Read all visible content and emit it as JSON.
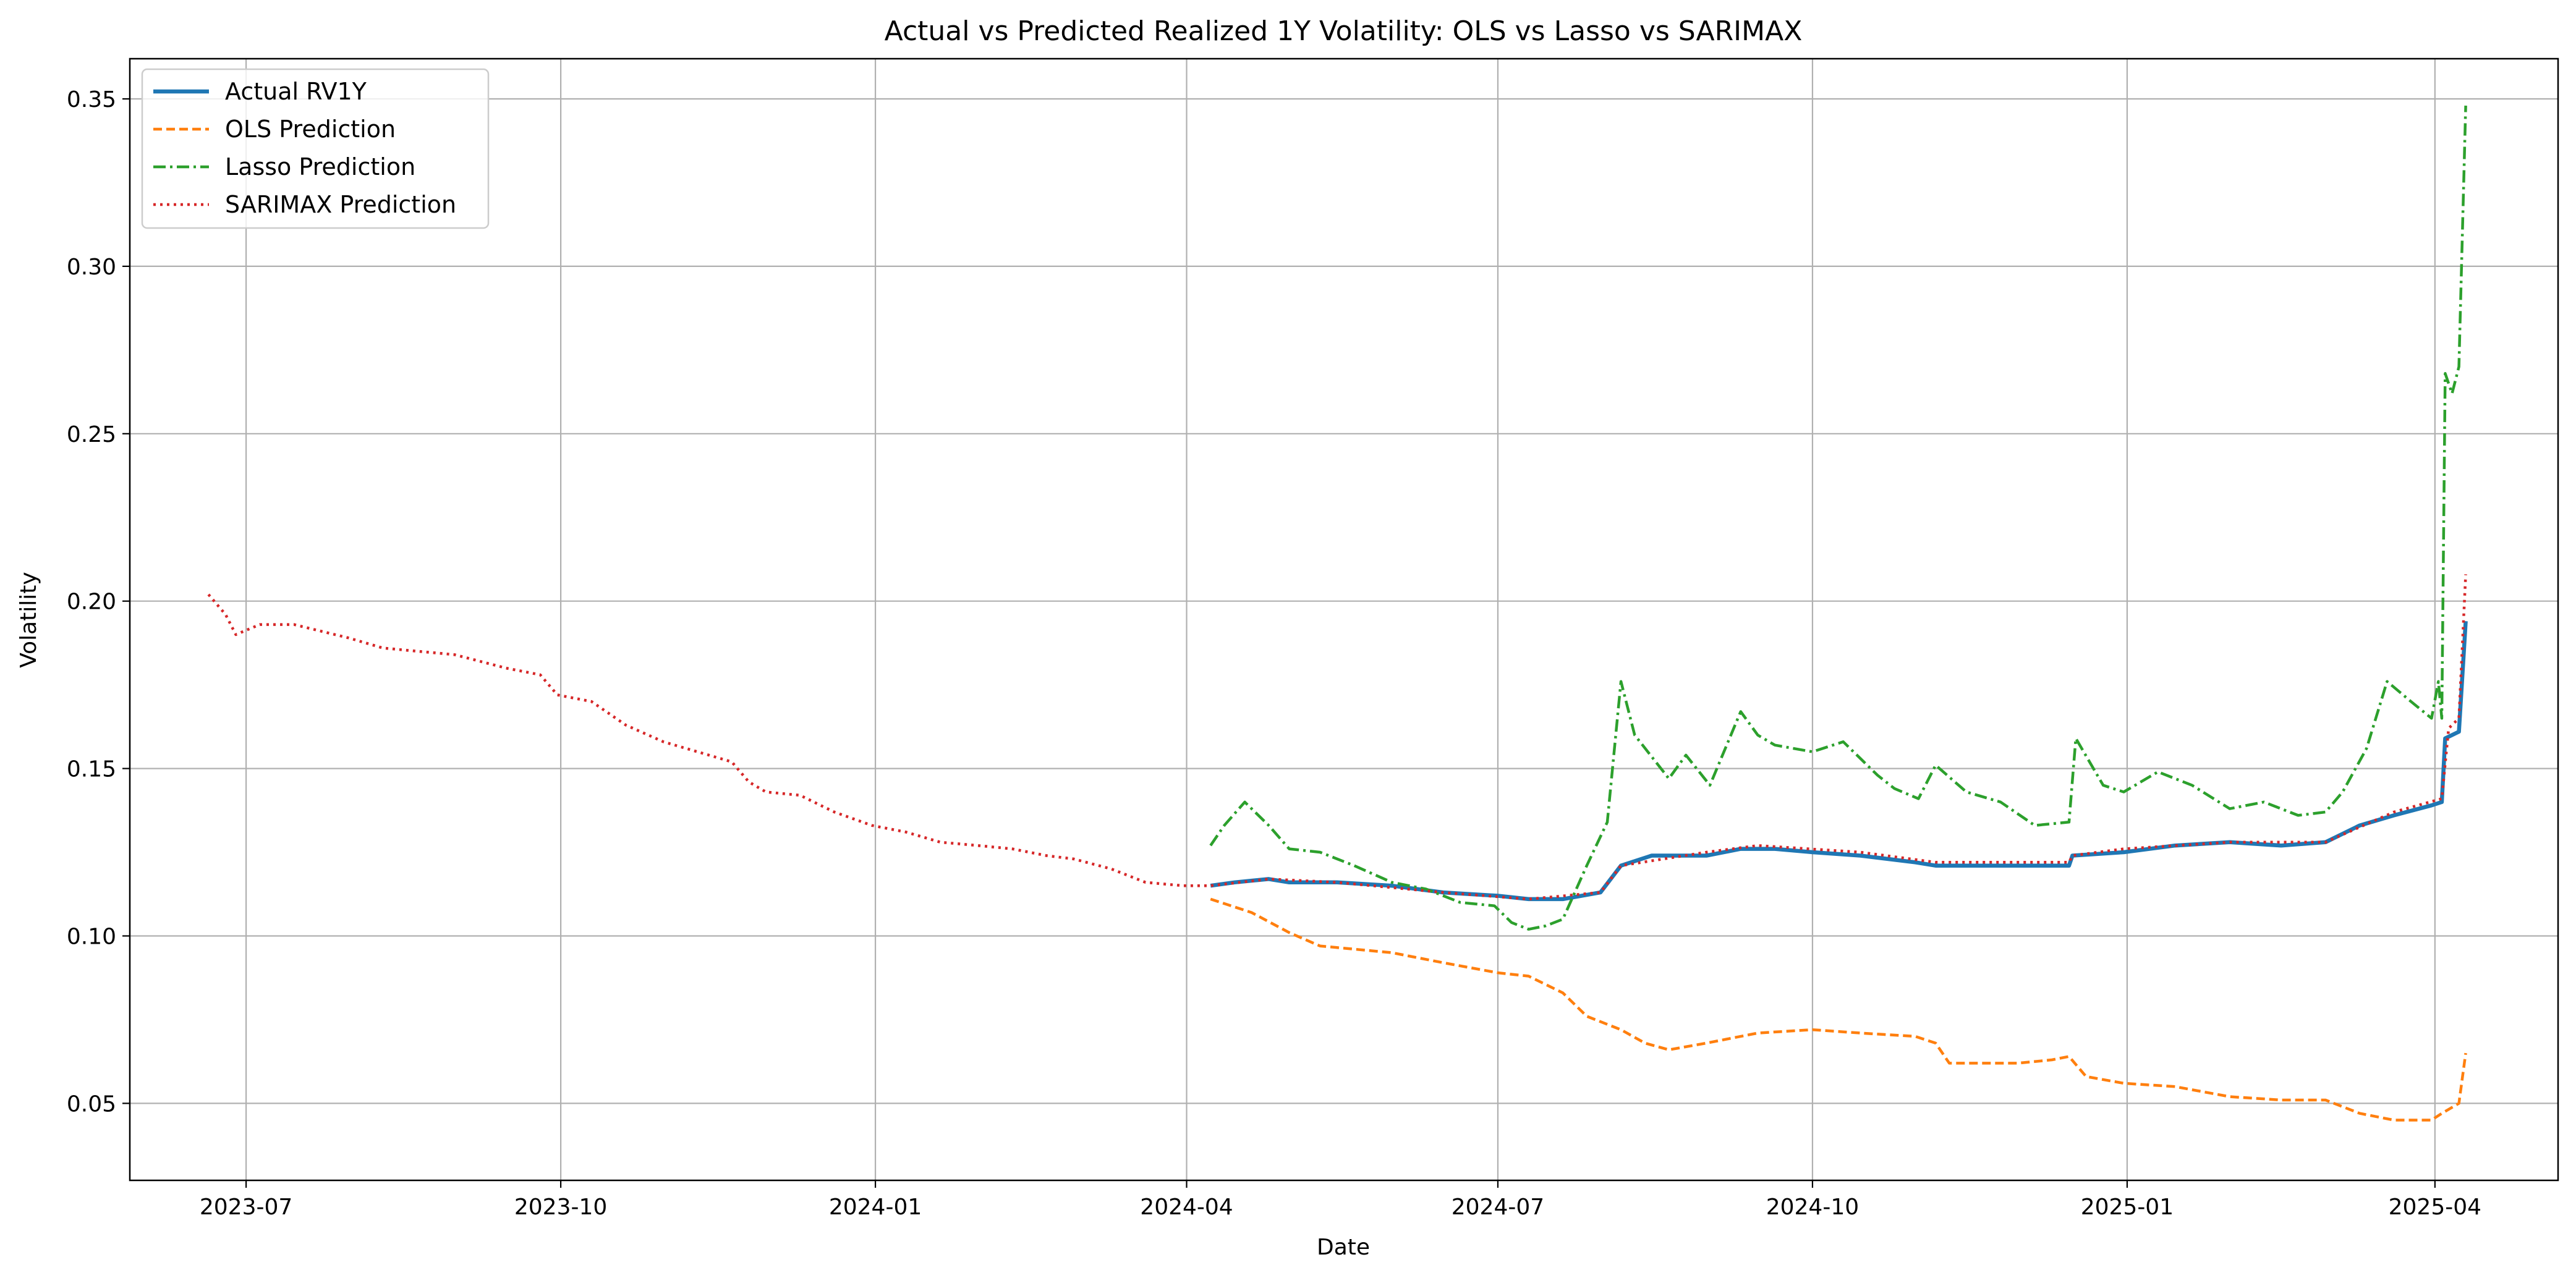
{
  "chart_data": {
    "type": "line",
    "title": "Actual vs Predicted Realized 1Y Volatility: OLS vs Lasso vs SARIMAX",
    "xlabel": "Date",
    "ylabel": "Volatility",
    "xlim": [
      "2023-05-28",
      "2025-05-07"
    ],
    "ylim": [
      0.027,
      0.362
    ],
    "grid": true,
    "legend_position": "upper-left",
    "x_ticks": [
      "2023-07-01",
      "2023-10-01",
      "2024-01-01",
      "2024-04-01",
      "2024-07-01",
      "2024-10-01",
      "2025-01-01",
      "2025-04-01"
    ],
    "x_tick_labels": [
      "2023-07",
      "2023-10",
      "2024-01",
      "2024-04",
      "2024-07",
      "2024-10",
      "2025-01",
      "2025-04"
    ],
    "y_ticks": [
      0.05,
      0.1,
      0.15,
      0.2,
      0.25,
      0.3,
      0.35
    ],
    "y_tick_labels": [
      "0.05",
      "0.10",
      "0.15",
      "0.20",
      "0.25",
      "0.30",
      "0.35"
    ],
    "series": [
      {
        "name": "Actual RV1Y",
        "color": "#1f77b4",
        "style": "solid",
        "points": [
          [
            "2024-04-08",
            0.115
          ],
          [
            "2024-04-15",
            0.116
          ],
          [
            "2024-04-25",
            0.117
          ],
          [
            "2024-05-01",
            0.116
          ],
          [
            "2024-05-15",
            0.116
          ],
          [
            "2024-05-31",
            0.115
          ],
          [
            "2024-06-15",
            0.113
          ],
          [
            "2024-07-01",
            0.112
          ],
          [
            "2024-07-10",
            0.111
          ],
          [
            "2024-07-20",
            0.111
          ],
          [
            "2024-07-31",
            0.113
          ],
          [
            "2024-08-06",
            0.121
          ],
          [
            "2024-08-15",
            0.124
          ],
          [
            "2024-08-31",
            0.124
          ],
          [
            "2024-09-10",
            0.126
          ],
          [
            "2024-09-20",
            0.126
          ],
          [
            "2024-10-01",
            0.125
          ],
          [
            "2024-10-15",
            0.124
          ],
          [
            "2024-10-31",
            0.122
          ],
          [
            "2024-11-06",
            0.121
          ],
          [
            "2024-11-15",
            0.121
          ],
          [
            "2024-11-30",
            0.121
          ],
          [
            "2024-12-15",
            0.121
          ],
          [
            "2024-12-16",
            0.124
          ],
          [
            "2024-12-31",
            0.125
          ],
          [
            "2025-01-15",
            0.127
          ],
          [
            "2025-01-31",
            0.128
          ],
          [
            "2025-02-15",
            0.127
          ],
          [
            "2025-02-28",
            0.128
          ],
          [
            "2025-03-10",
            0.133
          ],
          [
            "2025-03-20",
            0.136
          ],
          [
            "2025-03-31",
            0.139
          ],
          [
            "2025-04-03",
            0.14
          ],
          [
            "2025-04-04",
            0.159
          ],
          [
            "2025-04-08",
            0.161
          ],
          [
            "2025-04-10",
            0.194
          ]
        ]
      },
      {
        "name": "OLS Prediction",
        "color": "#ff7f0e",
        "style": "dashed",
        "points": [
          [
            "2024-04-08",
            0.111
          ],
          [
            "2024-04-20",
            0.107
          ],
          [
            "2024-05-01",
            0.101
          ],
          [
            "2024-05-10",
            0.097
          ],
          [
            "2024-05-31",
            0.095
          ],
          [
            "2024-06-15",
            0.092
          ],
          [
            "2024-07-01",
            0.089
          ],
          [
            "2024-07-10",
            0.088
          ],
          [
            "2024-07-20",
            0.083
          ],
          [
            "2024-07-27",
            0.076
          ],
          [
            "2024-08-06",
            0.072
          ],
          [
            "2024-08-13",
            0.068
          ],
          [
            "2024-08-20",
            0.066
          ],
          [
            "2024-08-31",
            0.068
          ],
          [
            "2024-09-15",
            0.071
          ],
          [
            "2024-10-01",
            0.072
          ],
          [
            "2024-10-15",
            0.071
          ],
          [
            "2024-10-31",
            0.07
          ],
          [
            "2024-11-06",
            0.068
          ],
          [
            "2024-11-10",
            0.062
          ],
          [
            "2024-11-30",
            0.062
          ],
          [
            "2024-12-10",
            0.063
          ],
          [
            "2024-12-15",
            0.064
          ],
          [
            "2024-12-20",
            0.058
          ],
          [
            "2024-12-31",
            0.056
          ],
          [
            "2025-01-15",
            0.055
          ],
          [
            "2025-01-31",
            0.052
          ],
          [
            "2025-02-15",
            0.051
          ],
          [
            "2025-02-28",
            0.051
          ],
          [
            "2025-03-10",
            0.047
          ],
          [
            "2025-03-20",
            0.045
          ],
          [
            "2025-03-31",
            0.045
          ],
          [
            "2025-04-03",
            0.047
          ],
          [
            "2025-04-08",
            0.05
          ],
          [
            "2025-04-10",
            0.065
          ]
        ]
      },
      {
        "name": "Lasso Prediction",
        "color": "#2ca02c",
        "style": "dashdot",
        "points": [
          [
            "2024-04-08",
            0.127
          ],
          [
            "2024-04-12",
            0.133
          ],
          [
            "2024-04-18",
            0.14
          ],
          [
            "2024-04-25",
            0.133
          ],
          [
            "2024-05-01",
            0.126
          ],
          [
            "2024-05-10",
            0.125
          ],
          [
            "2024-05-20",
            0.121
          ],
          [
            "2024-05-31",
            0.116
          ],
          [
            "2024-06-10",
            0.114
          ],
          [
            "2024-06-20",
            0.11
          ],
          [
            "2024-06-30",
            0.109
          ],
          [
            "2024-07-05",
            0.104
          ],
          [
            "2024-07-10",
            0.102
          ],
          [
            "2024-07-15",
            0.103
          ],
          [
            "2024-07-20",
            0.105
          ],
          [
            "2024-07-27",
            0.121
          ],
          [
            "2024-08-02",
            0.134
          ],
          [
            "2024-08-06",
            0.176
          ],
          [
            "2024-08-10",
            0.16
          ],
          [
            "2024-08-20",
            0.147
          ],
          [
            "2024-08-25",
            0.154
          ],
          [
            "2024-09-01",
            0.145
          ],
          [
            "2024-09-10",
            0.167
          ],
          [
            "2024-09-15",
            0.16
          ],
          [
            "2024-09-20",
            0.157
          ],
          [
            "2024-10-01",
            0.155
          ],
          [
            "2024-10-10",
            0.158
          ],
          [
            "2024-10-20",
            0.148
          ],
          [
            "2024-10-25",
            0.144
          ],
          [
            "2024-11-01",
            0.141
          ],
          [
            "2024-11-06",
            0.151
          ],
          [
            "2024-11-15",
            0.143
          ],
          [
            "2024-11-25",
            0.14
          ],
          [
            "2024-12-05",
            0.133
          ],
          [
            "2024-12-15",
            0.134
          ],
          [
            "2024-12-17",
            0.159
          ],
          [
            "2024-12-25",
            0.145
          ],
          [
            "2024-12-31",
            0.143
          ],
          [
            "2025-01-10",
            0.149
          ],
          [
            "2025-01-20",
            0.145
          ],
          [
            "2025-01-31",
            0.138
          ],
          [
            "2025-02-10",
            0.14
          ],
          [
            "2025-02-20",
            0.136
          ],
          [
            "2025-02-28",
            0.137
          ],
          [
            "2025-03-05",
            0.143
          ],
          [
            "2025-03-12",
            0.156
          ],
          [
            "2025-03-18",
            0.176
          ],
          [
            "2025-03-25",
            0.17
          ],
          [
            "2025-03-31",
            0.165
          ],
          [
            "2025-04-02",
            0.176
          ],
          [
            "2025-04-03",
            0.165
          ],
          [
            "2025-04-04",
            0.268
          ],
          [
            "2025-04-06",
            0.262
          ],
          [
            "2025-04-08",
            0.27
          ],
          [
            "2025-04-10",
            0.348
          ]
        ]
      },
      {
        "name": "SARIMAX Prediction",
        "color": "#d62728",
        "style": "dotted",
        "points": [
          [
            "2023-06-20",
            0.202
          ],
          [
            "2023-06-25",
            0.196
          ],
          [
            "2023-06-28",
            0.19
          ],
          [
            "2023-07-05",
            0.193
          ],
          [
            "2023-07-15",
            0.193
          ],
          [
            "2023-07-31",
            0.189
          ],
          [
            "2023-08-10",
            0.186
          ],
          [
            "2023-08-31",
            0.184
          ],
          [
            "2023-09-15",
            0.18
          ],
          [
            "2023-09-25",
            0.178
          ],
          [
            "2023-09-30",
            0.172
          ],
          [
            "2023-10-10",
            0.17
          ],
          [
            "2023-10-20",
            0.163
          ],
          [
            "2023-10-31",
            0.158
          ],
          [
            "2023-11-10",
            0.155
          ],
          [
            "2023-11-20",
            0.152
          ],
          [
            "2023-11-25",
            0.146
          ],
          [
            "2023-11-30",
            0.143
          ],
          [
            "2023-12-10",
            0.142
          ],
          [
            "2023-12-20",
            0.137
          ],
          [
            "2023-12-31",
            0.133
          ],
          [
            "2024-01-10",
            0.131
          ],
          [
            "2024-01-20",
            0.128
          ],
          [
            "2024-01-31",
            0.127
          ],
          [
            "2024-02-10",
            0.126
          ],
          [
            "2024-02-20",
            0.124
          ],
          [
            "2024-02-28",
            0.123
          ],
          [
            "2024-03-10",
            0.12
          ],
          [
            "2024-03-20",
            0.116
          ],
          [
            "2024-03-31",
            0.115
          ],
          [
            "2024-04-08",
            0.115
          ],
          [
            "2024-04-25",
            0.117
          ],
          [
            "2024-05-15",
            0.116
          ],
          [
            "2024-06-15",
            0.113
          ],
          [
            "2024-07-10",
            0.111
          ],
          [
            "2024-07-31",
            0.113
          ],
          [
            "2024-08-06",
            0.121
          ],
          [
            "2024-08-31",
            0.125
          ],
          [
            "2024-09-15",
            0.127
          ],
          [
            "2024-10-15",
            0.125
          ],
          [
            "2024-11-06",
            0.122
          ],
          [
            "2024-11-30",
            0.122
          ],
          [
            "2024-12-15",
            0.122
          ],
          [
            "2024-12-16",
            0.124
          ],
          [
            "2024-12-31",
            0.126
          ],
          [
            "2025-01-31",
            0.128
          ],
          [
            "2025-02-28",
            0.128
          ],
          [
            "2025-03-20",
            0.137
          ],
          [
            "2025-04-03",
            0.141
          ],
          [
            "2025-04-05",
            0.162
          ],
          [
            "2025-04-08",
            0.165
          ],
          [
            "2025-04-10",
            0.208
          ]
        ]
      }
    ]
  }
}
